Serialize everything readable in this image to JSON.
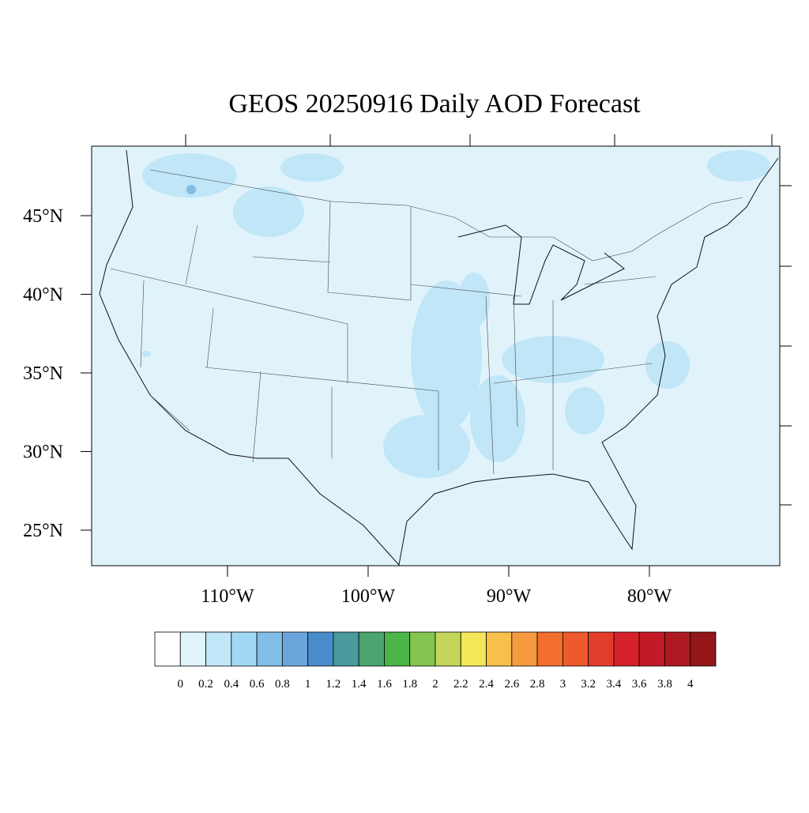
{
  "title": "GEOS 20250916 Daily AOD Forecast",
  "map": {
    "lat_range": [
      22.74,
      49.42
    ],
    "lon_range": [
      -119.66,
      -70.73
    ],
    "lat_ticks": [
      {
        "value": 45,
        "label": "45°N"
      },
      {
        "value": 40,
        "label": "40°N"
      },
      {
        "value": 35,
        "label": "35°N"
      },
      {
        "value": 30,
        "label": "30°N"
      },
      {
        "value": 25,
        "label": "25°N"
      }
    ],
    "lon_ticks": [
      {
        "value": -110,
        "label": "110°W"
      },
      {
        "value": -100,
        "label": "100°W"
      },
      {
        "value": -90,
        "label": "90°W"
      },
      {
        "value": -80,
        "label": "80°W"
      }
    ]
  },
  "colorbar": {
    "levels": [
      0,
      0.2,
      0.4,
      0.6,
      0.8,
      1,
      1.2,
      1.4,
      1.6,
      1.8,
      2,
      2.2,
      2.4,
      2.6,
      2.8,
      3,
      3.2,
      3.4,
      3.6,
      3.8,
      4
    ],
    "colors": [
      "#ffffff",
      "#e0f3fb",
      "#c0e6f8",
      "#a0d8f3",
      "#82bde6",
      "#6aa6dc",
      "#4a8ccb",
      "#4a9a9e",
      "#4aa56f",
      "#4bb54a",
      "#84c450",
      "#c3d65a",
      "#f6e65a",
      "#f8c04a",
      "#f59a3f",
      "#f26f2d",
      "#ee5a2e",
      "#e23d2a",
      "#d6202a",
      "#c41a26",
      "#af1a22",
      "#931718"
    ]
  }
}
